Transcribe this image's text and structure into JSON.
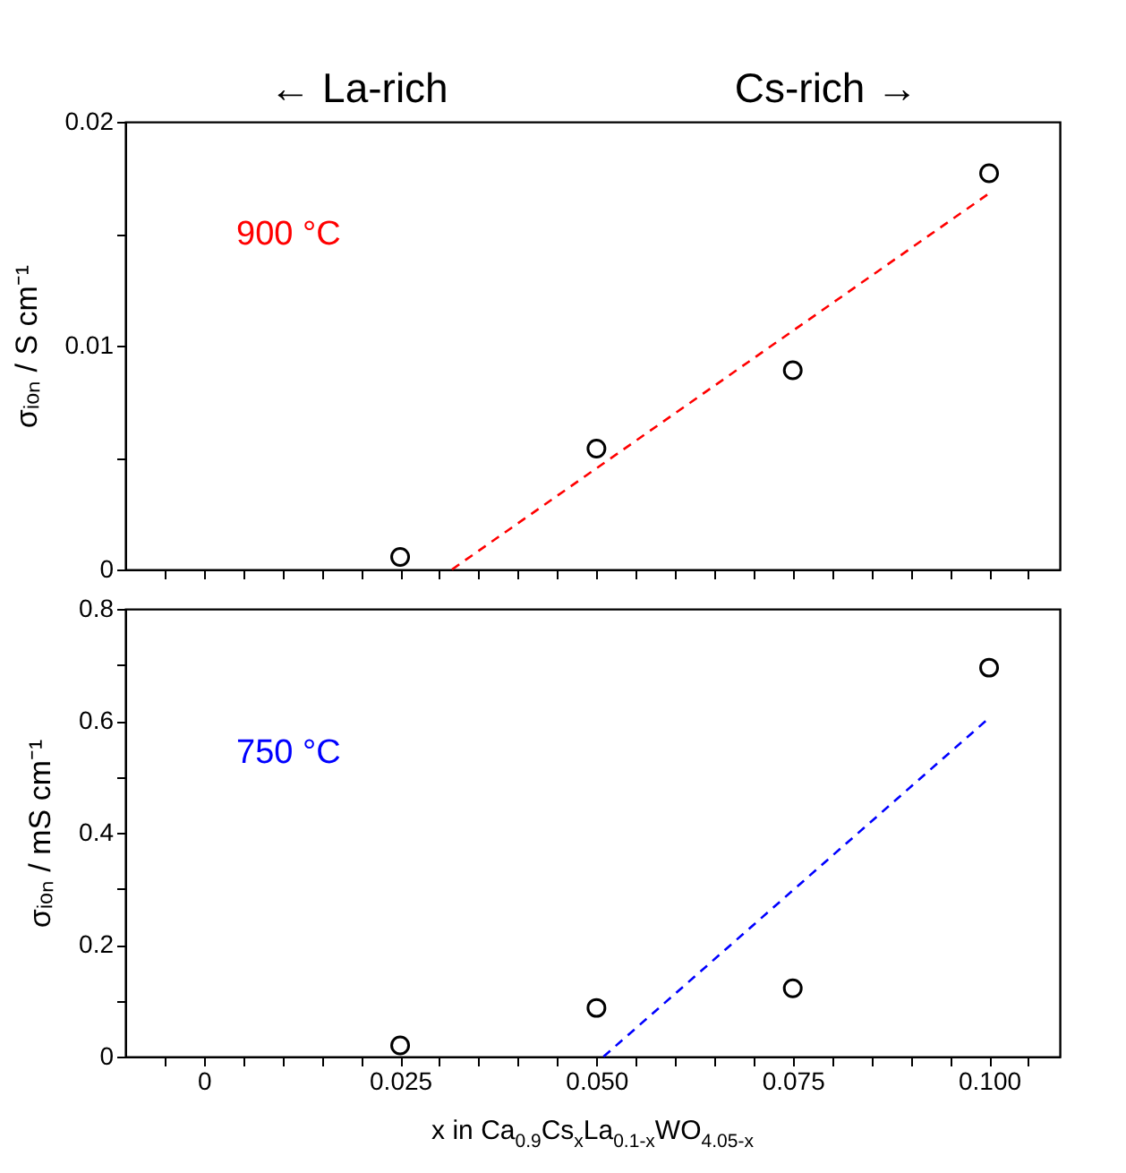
{
  "chart_data": [
    {
      "type": "scatter",
      "annotations": [
        "← La-rich",
        "Cs-rich →"
      ],
      "ylabel": "σᵢₒₙ / S cm⁻¹",
      "xlim": [
        -0.01,
        0.109
      ],
      "ylim": [
        0,
        0.02
      ],
      "tick_labels": "y",
      "marker": "circle",
      "grid": false,
      "legend": false,
      "xticks": [
        {
          "value": -0.005,
          "label": null
        },
        {
          "value": 0,
          "label": null
        },
        {
          "value": 0.005,
          "label": null
        },
        {
          "value": 0.01,
          "label": null
        },
        {
          "value": 0.015,
          "label": null
        },
        {
          "value": 0.02,
          "label": null
        },
        {
          "value": 0.025,
          "label": null
        },
        {
          "value": 0.03,
          "label": null
        },
        {
          "value": 0.035,
          "label": null
        },
        {
          "value": 0.04,
          "label": null
        },
        {
          "value": 0.045,
          "label": null
        },
        {
          "value": 0.05,
          "label": null
        },
        {
          "value": 0.055,
          "label": null
        },
        {
          "value": 0.06,
          "label": null
        },
        {
          "value": 0.065,
          "label": null
        },
        {
          "value": 0.07,
          "label": null
        },
        {
          "value": 0.075,
          "label": null
        },
        {
          "value": 0.08,
          "label": null
        },
        {
          "value": 0.085,
          "label": null
        },
        {
          "value": 0.09,
          "label": null
        },
        {
          "value": 0.095,
          "label": null
        },
        {
          "value": 0.1,
          "label": null
        },
        {
          "value": 0.105,
          "label": null
        }
      ],
      "yticks": [
        0,
        {
          "value": 0.005,
          "label": null
        },
        0.01,
        {
          "value": 0.015,
          "label": null
        },
        0.02
      ],
      "x": [
        0.025,
        0.05,
        0.075,
        0.1
      ],
      "series": [
        {
          "color": "#000000",
          "values": [
            0.00056,
            0.0054,
            0.0089,
            0.0177
          ]
        },
        {
          "type": "line",
          "name": "900 °C",
          "color": "#ff0000",
          "line_style": "dashed",
          "marker": "none",
          "x": [
            0.0316,
            0.1
          ],
          "values": [
            0,
            0.0168
          ]
        }
      ]
    },
    {
      "type": "scatter",
      "xlabel": "x in Ca$_{0.9}$Cs$_{x}$La$_{0.1-x}$WO$_{4.05-x}$",
      "ylabel": "σᵢₒₙ / mS cm⁻¹",
      "xlim": [
        -0.01,
        0.109
      ],
      "ylim": [
        0,
        0.8
      ],
      "marker": "circle",
      "grid": false,
      "legend": false,
      "xticks": [
        {
          "value": -0.005,
          "label": null
        },
        0,
        {
          "value": 0.005,
          "label": null
        },
        {
          "value": 0.01,
          "label": null
        },
        {
          "value": 0.015,
          "label": null
        },
        {
          "value": 0.02,
          "label": null
        },
        0.025,
        {
          "value": 0.03,
          "label": null
        },
        {
          "value": 0.035,
          "label": null
        },
        {
          "value": 0.04,
          "label": null
        },
        {
          "value": 0.045,
          "label": null
        },
        {
          "value": 0.05,
          "label": "0.050"
        },
        {
          "value": 0.055,
          "label": null
        },
        {
          "value": 0.06,
          "label": null
        },
        {
          "value": 0.065,
          "label": null
        },
        {
          "value": 0.07,
          "label": null
        },
        0.075,
        {
          "value": 0.08,
          "label": null
        },
        {
          "value": 0.085,
          "label": null
        },
        {
          "value": 0.09,
          "label": null
        },
        {
          "value": 0.095,
          "label": null
        },
        {
          "value": 0.1,
          "label": "0.100"
        },
        {
          "value": 0.105,
          "label": null
        }
      ],
      "yticks": [
        0,
        {
          "value": 0.1,
          "label": null
        },
        0.2,
        {
          "value": 0.3,
          "label": null
        },
        0.4,
        {
          "value": 0.5,
          "label": null
        },
        0.6,
        {
          "value": 0.7,
          "label": null
        },
        0.8
      ],
      "x": [
        0.025,
        0.05,
        0.075,
        0.1
      ],
      "series": [
        {
          "color": "#000000",
          "values": [
            0.02,
            0.087,
            0.122,
            0.695
          ]
        },
        {
          "type": "line",
          "name": "750 °C",
          "color": "#0000ff",
          "line_style": "dashed",
          "marker": "none",
          "x": [
            0.0509,
            0.1
          ],
          "values": [
            0,
            0.605
          ]
        }
      ]
    }
  ]
}
